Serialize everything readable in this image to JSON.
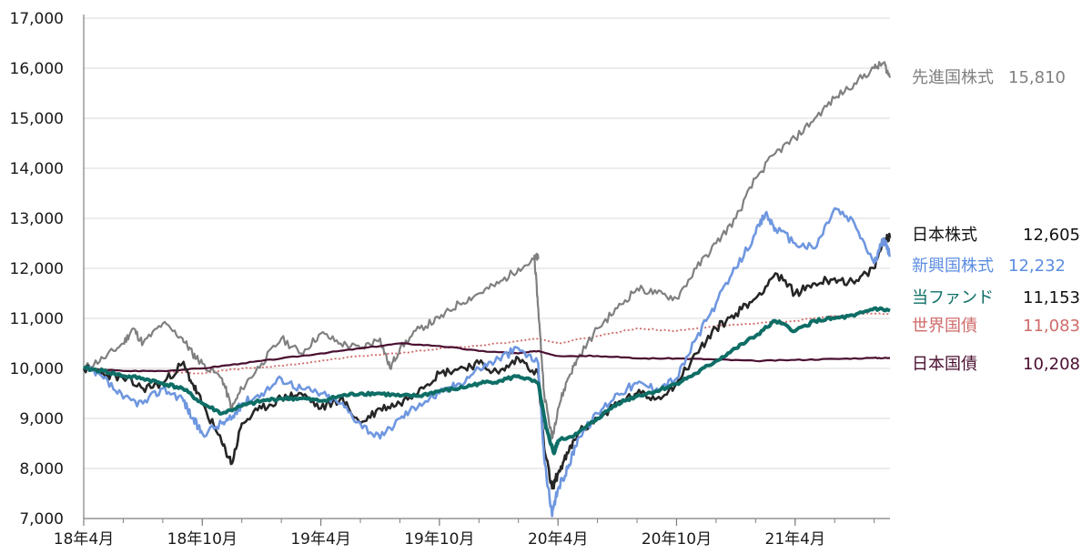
{
  "chart_data": {
    "type": "line",
    "ylim": [
      7000,
      17000
    ],
    "y_ticks": [
      "7,000",
      "8,000",
      "9,000",
      "10,000",
      "11,000",
      "12,000",
      "13,000",
      "14,000",
      "15,000",
      "16,000",
      "17,000"
    ],
    "y_tick_values": [
      7000,
      8000,
      9000,
      10000,
      11000,
      12000,
      13000,
      14000,
      15000,
      16000,
      17000
    ],
    "x_ticks": [
      "18年4月",
      "18年10月",
      "19年4月",
      "19年10月",
      "20年4月",
      "20年10月",
      "21年4月"
    ],
    "x_tick_months": [
      0,
      6,
      12,
      18,
      24,
      30,
      36
    ],
    "x_max_month": 40.8,
    "grid": "horizontal",
    "legend_placement": "right",
    "series": [
      {
        "name": "先進国株式",
        "end_label": "15,810",
        "color": "#808080",
        "style": "solid",
        "x": [
          0,
          1,
          2,
          2.5,
          3,
          4,
          5,
          5.5,
          6,
          7,
          7.5,
          8,
          9,
          10,
          11,
          12,
          13,
          14,
          15,
          15.5,
          16,
          17,
          18,
          19,
          20,
          21,
          22,
          23,
          22.8,
          23,
          23.3,
          23.7,
          24,
          24.5,
          25,
          26,
          27,
          28,
          29,
          30,
          31,
          32,
          33,
          34,
          35,
          36,
          37,
          38,
          39,
          40,
          40.5,
          40.8
        ],
        "y": [
          10000,
          10200,
          10500,
          10800,
          10500,
          10900,
          10600,
          10300,
          10100,
          9800,
          9200,
          9600,
          10100,
          10600,
          10300,
          10700,
          10500,
          10400,
          10600,
          10000,
          10400,
          10800,
          11000,
          11300,
          11500,
          11700,
          12000,
          12200,
          12250,
          11200,
          9500,
          8600,
          9200,
          9800,
          10200,
          10800,
          11200,
          11600,
          11500,
          11400,
          12000,
          12500,
          13000,
          13800,
          14300,
          14600,
          15000,
          15400,
          15700,
          16000,
          16100,
          15810
        ]
      },
      {
        "name": "日本株式",
        "end_label": "12,605",
        "color": "#262626",
        "style": "solid",
        "x": [
          0,
          1,
          2,
          3,
          4,
          5,
          5.5,
          6,
          7,
          7.5,
          8,
          9,
          10,
          11,
          12,
          13,
          14,
          15,
          16,
          17,
          18,
          19,
          20,
          21,
          22,
          23,
          23.3,
          23.7,
          24,
          24.5,
          25,
          26,
          27,
          28,
          29,
          30,
          31,
          32,
          33,
          34,
          35,
          36,
          37,
          38,
          39,
          40,
          40.5,
          40.8
        ],
        "y": [
          10000,
          9900,
          9800,
          9600,
          9700,
          10100,
          9700,
          9300,
          8500,
          8100,
          8900,
          9200,
          9400,
          9500,
          9200,
          9400,
          8900,
          9200,
          9300,
          9600,
          9900,
          10000,
          10100,
          9900,
          10200,
          9900,
          8400,
          7600,
          7900,
          8300,
          8700,
          9000,
          9300,
          9500,
          9400,
          9700,
          10300,
          10800,
          11100,
          11400,
          11900,
          11500,
          11700,
          11800,
          11700,
          12000,
          12600,
          12605
        ]
      },
      {
        "name": "新興国株式",
        "end_label": "12,232",
        "color": "#6f97e0",
        "style": "solid",
        "x": [
          0,
          1,
          2,
          3,
          4,
          5,
          5.5,
          6,
          7,
          7.5,
          8,
          9,
          10,
          11,
          12,
          13,
          14,
          15,
          16,
          17,
          18,
          19,
          20,
          21,
          22,
          23,
          23.3,
          23.7,
          24,
          24.5,
          25,
          26,
          27,
          28,
          29,
          30,
          31,
          32,
          33,
          34,
          34.5,
          35,
          36,
          37,
          38,
          39,
          40,
          40.5,
          40.8
        ],
        "y": [
          10000,
          9800,
          9400,
          9300,
          9600,
          9400,
          9000,
          8700,
          8900,
          9000,
          9300,
          9500,
          9800,
          9600,
          9500,
          9300,
          8900,
          8600,
          9000,
          9300,
          9500,
          9700,
          10000,
          10200,
          10400,
          10100,
          8200,
          7050,
          7600,
          8000,
          8600,
          9100,
          9500,
          9700,
          9600,
          9800,
          10600,
          11300,
          12000,
          12700,
          13100,
          12800,
          12500,
          12400,
          13200,
          12900,
          12100,
          12600,
          12232
        ]
      },
      {
        "name": "当ファンド",
        "end_label": "11,153",
        "color": "#0e6e66",
        "style": "solid",
        "x": [
          0,
          1,
          2,
          3,
          4,
          5,
          6,
          7,
          8,
          9,
          10,
          11,
          12,
          13,
          14,
          15,
          16,
          17,
          18,
          19,
          20,
          21,
          22,
          23,
          23.4,
          23.8,
          24,
          25,
          26,
          27,
          28,
          29,
          30,
          31,
          32,
          33,
          34,
          35,
          36,
          37,
          38,
          39,
          40,
          40.8
        ],
        "y": [
          10000,
          9950,
          9850,
          9800,
          9700,
          9600,
          9300,
          9100,
          9250,
          9350,
          9400,
          9400,
          9350,
          9450,
          9500,
          9500,
          9450,
          9450,
          9550,
          9600,
          9700,
          9750,
          9850,
          9700,
          8800,
          8300,
          8550,
          8700,
          9000,
          9300,
          9450,
          9550,
          9700,
          9900,
          10150,
          10400,
          10650,
          10950,
          10750,
          10950,
          11000,
          11050,
          11200,
          11153
        ]
      },
      {
        "name": "世界国債",
        "end_label": "11,083",
        "color": "#d06a6a",
        "style": "dotted",
        "x": [
          0,
          2,
          4,
          6,
          8,
          10,
          12,
          14,
          16,
          18,
          20,
          22,
          23,
          24,
          26,
          28,
          30,
          32,
          34,
          36,
          38,
          40,
          40.8
        ],
        "y": [
          10000,
          9950,
          9950,
          9900,
          10000,
          10050,
          10150,
          10250,
          10300,
          10400,
          10450,
          10550,
          10600,
          10500,
          10650,
          10800,
          10750,
          10850,
          10900,
          10950,
          11050,
          11100,
          11083
        ]
      },
      {
        "name": "日本国債",
        "end_label": "10,208",
        "color": "#4a0f30",
        "style": "solid",
        "x": [
          0,
          2,
          4,
          6,
          8,
          10,
          12,
          14,
          16,
          18,
          20,
          22,
          23,
          24,
          26,
          28,
          30,
          32,
          34,
          36,
          38,
          40,
          40.8
        ],
        "y": [
          10000,
          9950,
          9950,
          10000,
          10100,
          10200,
          10300,
          10400,
          10500,
          10450,
          10350,
          10300,
          10350,
          10250,
          10250,
          10200,
          10200,
          10180,
          10150,
          10170,
          10190,
          10210,
          10208
        ]
      }
    ]
  }
}
